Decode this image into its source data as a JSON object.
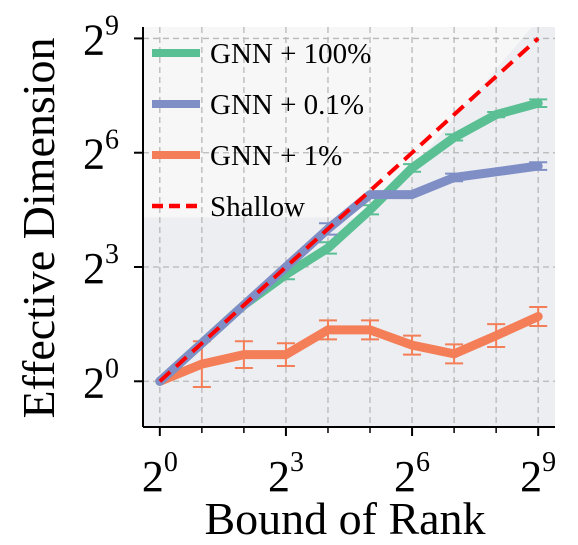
{
  "chart_data": {
    "type": "line",
    "title": "",
    "xlabel": "Bound of Rank",
    "ylabel": "Effective Dimension",
    "xscale": "log2",
    "yscale": "log2",
    "xlim_exp": [
      -0.4,
      9.4
    ],
    "ylim_exp": [
      -1.2,
      9.3
    ],
    "x_ticks": [
      {
        "base": "2",
        "exp": "0",
        "value_exp": 0
      },
      {
        "base": "2",
        "exp": "3",
        "value_exp": 3
      },
      {
        "base": "2",
        "exp": "6",
        "value_exp": 6
      },
      {
        "base": "2",
        "exp": "9",
        "value_exp": 9
      }
    ],
    "y_ticks": [
      {
        "base": "2",
        "exp": "0",
        "value_exp": 0
      },
      {
        "base": "2",
        "exp": "3",
        "value_exp": 3
      },
      {
        "base": "2",
        "exp": "6",
        "value_exp": 6
      },
      {
        "base": "2",
        "exp": "9",
        "value_exp": 9
      }
    ],
    "grid": true,
    "legend_position": "top-left",
    "x_exp": [
      0,
      1,
      2,
      3,
      4,
      5,
      6,
      7,
      8,
      9
    ],
    "series": [
      {
        "name": "GNN + 100%",
        "color": "#5bbf94",
        "style": "solid",
        "y_exp": [
          0,
          1,
          2,
          2.8,
          3.5,
          4.5,
          5.6,
          6.4,
          7.0,
          7.3
        ],
        "err_exp": [
          0,
          0,
          0,
          0.12,
          0.15,
          0.12,
          0.1,
          0.08,
          0.07,
          0.1
        ]
      },
      {
        "name": "GNN + 0.1%",
        "color": "#7f8fc6",
        "style": "solid",
        "y_exp": [
          0,
          1,
          2,
          3,
          4,
          4.9,
          4.9,
          5.35,
          5.5,
          5.65
        ],
        "err_exp": [
          0,
          0,
          0,
          0,
          0.15,
          0,
          0,
          0.1,
          0.05,
          0.1
        ]
      },
      {
        "name": "GNN + 1%",
        "color": "#f47e57",
        "style": "solid",
        "y_exp": [
          0,
          0.45,
          0.7,
          0.7,
          1.35,
          1.35,
          0.95,
          0.72,
          1.2,
          1.7
        ],
        "err_exp": [
          0,
          0.6,
          0.35,
          0.3,
          0.25,
          0.25,
          0.25,
          0.25,
          0.3,
          0.25
        ]
      },
      {
        "name": "Shallow",
        "color": "#ff0000",
        "style": "dashed",
        "y_exp": [
          0,
          1,
          2,
          3,
          4,
          5,
          6,
          7,
          8,
          9
        ],
        "err_exp": [
          0,
          0,
          0,
          0,
          0,
          0,
          0,
          0,
          0,
          0
        ]
      }
    ]
  }
}
